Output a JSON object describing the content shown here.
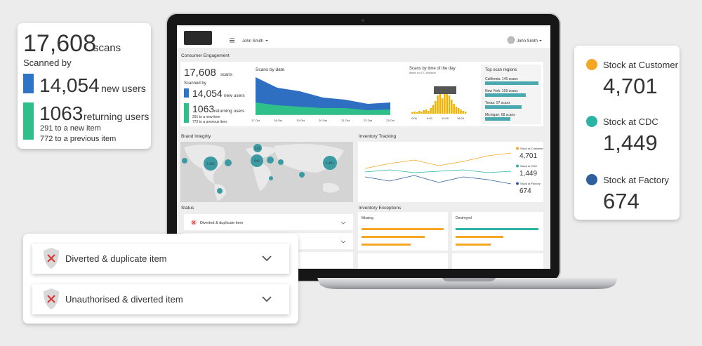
{
  "scans_card": {
    "total": "17,608",
    "total_unit": "scans",
    "scanned_by": "Scanned by",
    "new_users": "14,054",
    "new_users_label": "new users",
    "new_users_color": "#2e75c7",
    "returning_users": "1063",
    "returning_users_label": "returning users",
    "returning_users_color": "#2fbf8a",
    "new_item": "291 to a new item",
    "previous_item": "772 to a previous item"
  },
  "stock_card": {
    "items": [
      {
        "label": "Stock at Customer",
        "value": "4,701",
        "color": "#f5a623"
      },
      {
        "label": "Stock at CDC",
        "value": "1,449",
        "color": "#2bb3a3"
      },
      {
        "label": "Stock at Factory",
        "value": "674",
        "color": "#2f5f9e"
      }
    ]
  },
  "status_card": {
    "items": [
      "Diverted & duplicate item",
      "Unauthorised & diverted item"
    ]
  },
  "dashboard": {
    "user": "John Smith",
    "consumer_engagement": "Consumer Engagement",
    "scans_by_date": {
      "title": "Scans by date",
      "dates": [
        "17 Oct",
        "18 Oct",
        "19 Oct",
        "20 Oct",
        "21 Oct",
        "22 Oct",
        "23 Oct"
      ]
    },
    "scans_by_time": {
      "title": "Scans by time of the day",
      "subtitle": "Based on UTC timezone",
      "hours": [
        "0:00",
        "6:00",
        "12:00",
        "18:00"
      ]
    },
    "top_regions": {
      "title": "Top scan regions",
      "items": [
        "California: 145 scans",
        "New York: 109 scans",
        "Texas: 97 scans",
        "Michigan: 68 scans"
      ]
    },
    "brand_integrity": "Brand Integrity",
    "map_bubbles": [
      "121",
      "1,026",
      "842",
      "1,401"
    ],
    "inventory_tracking": "Inventory Tracking",
    "status": "Status",
    "inventory_exceptions": "Inventory Exceptions",
    "exceptions": [
      "Missing",
      "Destroyed"
    ]
  }
}
